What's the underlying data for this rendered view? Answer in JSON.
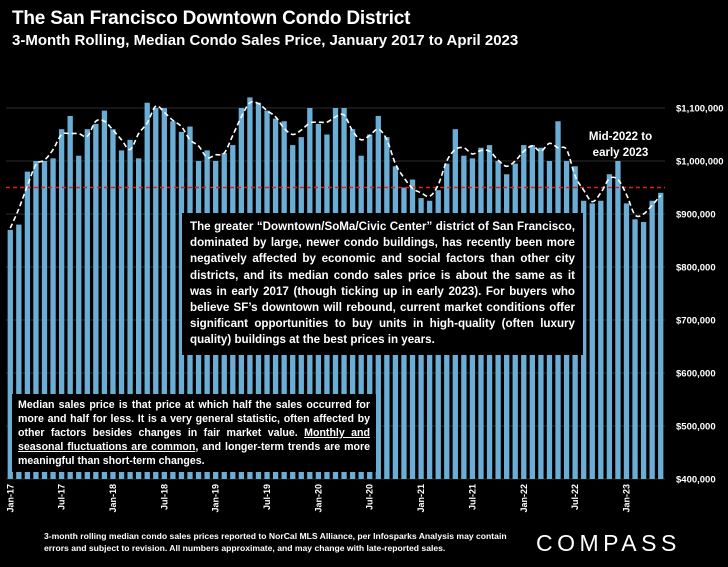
{
  "header": {
    "title": "The San Francisco Downtown Condo District",
    "subtitle": "3-Month Rolling, Median Condo Sales Price, January 2017 to April 2023"
  },
  "text_boxes": {
    "main": "The greater “Downtown/SoMa/Civic Center” district of San Francisco, dominated by large, newer condo buildings, has recently been more negatively affected by economic and social factors than other city districts, and its median condo sales price is about the same as it was in early 2017 (though ticking up in early 2023). For buyers who believe SF’s downtown will rebound, current market conditions offer significant opportunities to buy units in high-quality (often luxury quality) buildings at the best prices in years.",
    "note_part1": "Median sales price is that price at which half the sales occurred for more and half for less. It is a very general statistic, often affected by other factors besides changes in fair market value. ",
    "note_underlined": "Monthly and seasonal fluctuations are common",
    "note_part2": ", and longer-term trends are more meaningful than short-term changes.",
    "annotation": "Mid-2022 to early 2023"
  },
  "footnote": "3-month rolling median condo sales prices reported to NorCal MLS Alliance, per Infosparks Analysis may contain errors and subject to revision. All numbers approximate, and may change with late-reported sales.",
  "logo": "COMPASS",
  "colors": {
    "bar": "#6aaed6",
    "trend": "#ffffff",
    "reference_line": "#e02020",
    "background": "#000000"
  },
  "chart_data": {
    "type": "bar",
    "title": "The San Francisco Downtown Condo District",
    "subtitle": "3-Month Rolling, Median Condo Sales Price, January 2017 to April 2023",
    "ylim": [
      400000,
      1100000
    ],
    "yticks": [
      400000,
      500000,
      600000,
      700000,
      800000,
      900000,
      1000000,
      1100000
    ],
    "ytick_labels": [
      "$400,000",
      "$500,000",
      "$600,000",
      "$700,000",
      "$800,000",
      "$900,000",
      "$1,000,000",
      "$1,100,000"
    ],
    "xtick_labels": [
      "Jan-17",
      "Jul-17",
      "Jan-18",
      "Jul-18",
      "Jan-19",
      "Jul-19",
      "Jan-20",
      "Jul-20",
      "Jan-21",
      "Jul-21",
      "Jan-22",
      "Jul-22",
      "Jan-23"
    ],
    "xtick_every": 6,
    "reference_line": 950000,
    "trend_line": "dashed",
    "values": [
      870000,
      880000,
      980000,
      1000000,
      1000000,
      1005000,
      1060000,
      1085000,
      1010000,
      1060000,
      1070000,
      1095000,
      1060000,
      1020000,
      1040000,
      1005000,
      1110000,
      1100000,
      1100000,
      1075000,
      1055000,
      1065000,
      1000000,
      1020000,
      1000000,
      1015000,
      1030000,
      1100000,
      1120000,
      1110000,
      1095000,
      1080000,
      1075000,
      1030000,
      1045000,
      1100000,
      1070000,
      1050000,
      1100000,
      1100000,
      1060000,
      1010000,
      1050000,
      1085000,
      1045000,
      990000,
      950000,
      965000,
      930000,
      925000,
      945000,
      995000,
      1060000,
      1010000,
      1005000,
      1025000,
      1030000,
      1000000,
      975000,
      995000,
      1030000,
      1030000,
      1025000,
      1000000,
      1075000,
      1000000,
      990000,
      925000,
      920000,
      925000,
      975000,
      1000000,
      920000,
      890000,
      885000,
      925000,
      940000
    ]
  }
}
